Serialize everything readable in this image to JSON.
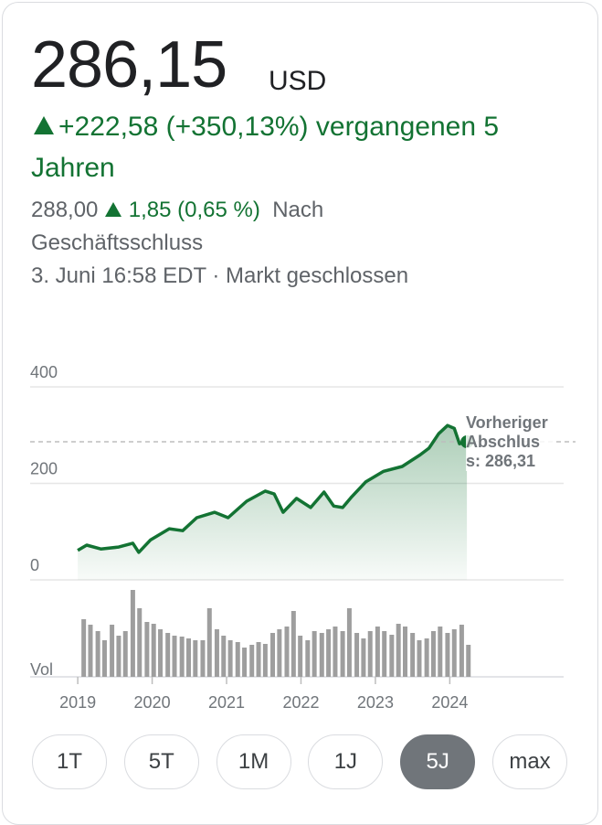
{
  "quote": {
    "price": "286,15",
    "currency": "USD",
    "change": "+222,58 (+350,13%) vergangenen 5 Jahren",
    "after_hours_price": "288,00",
    "after_hours_change": "1,85 (0,65 %)",
    "after_hours_label": "Nach Geschäftsschluss",
    "timestamp": "3. Juni 16:58 EDT · Markt geschlossen"
  },
  "chart_data": {
    "type": "line",
    "color": "#137333",
    "x": [
      2019.0,
      2019.12,
      2019.31,
      2019.55,
      2019.74,
      2019.82,
      2019.98,
      2020.23,
      2020.41,
      2020.6,
      2020.84,
      2021.02,
      2021.27,
      2021.52,
      2021.64,
      2021.76,
      2021.94,
      2022.13,
      2022.31,
      2022.44,
      2022.56,
      2022.68,
      2022.87,
      2023.11,
      2023.36,
      2023.6,
      2023.72,
      2023.85,
      2023.97,
      2024.06,
      2024.13,
      2024.23
    ],
    "series": [
      {
        "color": "#137333",
        "values": [
          61,
          72,
          64,
          68,
          76,
          57,
          83,
          106,
          102,
          129,
          140,
          129,
          163,
          184,
          178,
          140,
          169,
          150,
          182,
          153,
          150,
          172,
          203,
          225,
          235,
          259,
          273,
          303,
          320,
          314,
          282,
          286.15
        ]
      }
    ],
    "xlim": [
      2018.36,
      2025.53
    ],
    "xticks": [
      2019,
      2020,
      2021,
      2022,
      2023,
      2024
    ],
    "ylim": [
      0,
      400
    ],
    "yticks": [
      0,
      200,
      400
    ],
    "grid": true,
    "reference_line": {
      "label": "Vorheriger Abschluss: 286,31",
      "value": 286.31
    },
    "volume": {
      "label": "Vol",
      "color": "#9e9e9e",
      "ylim": [
        0,
        100
      ],
      "x": [
        2019.08,
        2019.17,
        2019.27,
        2019.36,
        2019.46,
        2019.55,
        2019.64,
        2019.74,
        2019.83,
        2019.93,
        2020.02,
        2020.11,
        2020.21,
        2020.3,
        2020.4,
        2020.49,
        2020.58,
        2020.68,
        2020.77,
        2020.87,
        2020.96,
        2021.05,
        2021.15,
        2021.24,
        2021.34,
        2021.43,
        2021.52,
        2021.62,
        2021.71,
        2021.81,
        2021.9,
        2021.99,
        2022.09,
        2022.18,
        2022.28,
        2022.37,
        2022.46,
        2022.56,
        2022.65,
        2022.75,
        2022.84,
        2022.93,
        2023.03,
        2023.12,
        2023.22,
        2023.31,
        2023.4,
        2023.5,
        2023.59,
        2023.69,
        2023.78,
        2023.87,
        2023.97,
        2024.06,
        2024.16,
        2024.25
      ],
      "values": [
        63,
        57,
        50,
        40,
        57,
        45,
        50,
        95,
        75,
        60,
        58,
        52,
        48,
        45,
        44,
        42,
        40,
        40,
        75,
        52,
        45,
        40,
        38,
        32,
        35,
        38,
        36,
        48,
        52,
        55,
        72,
        45,
        40,
        50,
        48,
        52,
        55,
        50,
        75,
        48,
        42,
        50,
        55,
        50,
        46,
        58,
        55,
        48,
        40,
        42,
        50,
        55,
        48,
        52,
        57,
        35
      ]
    }
  },
  "range_buttons": [
    "1T",
    "5T",
    "1M",
    "1J",
    "5J",
    "max"
  ],
  "selected_range": "5J"
}
